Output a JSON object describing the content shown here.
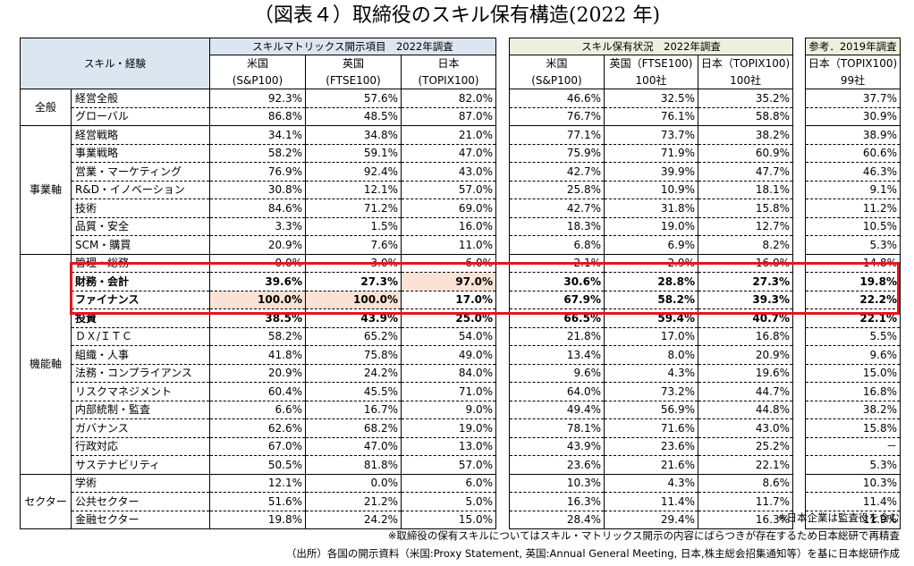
{
  "title": "（図表４）取締役のスキル保有構造(2022 年)",
  "header": {
    "skill_label": "スキル・経験",
    "group1": "スキルマトリックス開示項目　2022年調査",
    "group2": "スキル保有状況　2022年調査",
    "group3": "参考．2019年調査",
    "g1_cols": [
      {
        "top": "米国",
        "bottom": "(S&P100)"
      },
      {
        "top": "英国",
        "bottom": "(FTSE100)"
      },
      {
        "top": "日本",
        "bottom": "(TOPIX100)"
      }
    ],
    "g2_cols": [
      {
        "top": "米国",
        "bottom": "(S&P100)"
      },
      {
        "top": "英国（FTSE100)",
        "bottom": "100社"
      },
      {
        "top": "日本（TOPIX100)",
        "bottom": "100社"
      }
    ],
    "g3_cols": [
      {
        "top": "日本（TOPIX100)",
        "bottom": "99社"
      }
    ]
  },
  "categories": {
    "general": "全般",
    "business": "事業軸",
    "function": "機能軸",
    "sector": "セクター"
  },
  "rows": [
    {
      "cat": "general",
      "item": "経営全般",
      "g1": [
        "92.3%",
        "57.6%",
        "82.0%"
      ],
      "g2": [
        "46.6%",
        "32.5%",
        "35.2%"
      ],
      "g3": "37.7%"
    },
    {
      "cat": "general",
      "item": "グローバル",
      "g1": [
        "86.8%",
        "48.5%",
        "87.0%"
      ],
      "g2": [
        "76.7%",
        "76.1%",
        "58.8%"
      ],
      "g3": "30.9%"
    },
    {
      "cat": "business",
      "item": "経営戦略",
      "g1": [
        "34.1%",
        "34.8%",
        "21.0%"
      ],
      "g2": [
        "77.1%",
        "73.7%",
        "38.2%"
      ],
      "g3": "38.9%"
    },
    {
      "cat": "business",
      "item": "事業戦略",
      "g1": [
        "58.2%",
        "59.1%",
        "47.0%"
      ],
      "g2": [
        "75.9%",
        "71.9%",
        "60.9%"
      ],
      "g3": "60.6%"
    },
    {
      "cat": "business",
      "item": "営業・マーケティング",
      "g1": [
        "76.9%",
        "92.4%",
        "43.0%"
      ],
      "g2": [
        "42.7%",
        "39.9%",
        "47.7%"
      ],
      "g3": "46.3%"
    },
    {
      "cat": "business",
      "item": "R&D・イノベーション",
      "g1": [
        "30.8%",
        "12.1%",
        "57.0%"
      ],
      "g2": [
        "25.8%",
        "10.9%",
        "18.1%"
      ],
      "g3": "9.1%"
    },
    {
      "cat": "business",
      "item": "技術",
      "g1": [
        "84.6%",
        "71.2%",
        "69.0%"
      ],
      "g2": [
        "42.7%",
        "31.8%",
        "15.8%"
      ],
      "g3": "11.2%"
    },
    {
      "cat": "business",
      "item": "品質・安全",
      "g1": [
        "3.3%",
        "1.5%",
        "16.0%"
      ],
      "g2": [
        "18.3%",
        "19.0%",
        "12.7%"
      ],
      "g3": "10.5%"
    },
    {
      "cat": "business",
      "item": "SCM・購買",
      "g1": [
        "20.9%",
        "7.6%",
        "11.0%"
      ],
      "g2": [
        "6.8%",
        "6.9%",
        "8.2%"
      ],
      "g3": "5.3%"
    },
    {
      "cat": "function",
      "item": "管理・総務",
      "g1": [
        "0.0%",
        "3.0%",
        "6.0%"
      ],
      "g2": [
        "2.1%",
        "2.9%",
        "16.0%"
      ],
      "g3": "14.8%"
    },
    {
      "cat": "function",
      "item": "財務・会計",
      "g1": [
        "39.6%",
        "27.3%",
        "97.0%"
      ],
      "g2": [
        "30.6%",
        "28.8%",
        "27.3%"
      ],
      "g3": "19.8%"
    },
    {
      "cat": "function",
      "item": "ファイナンス",
      "g1": [
        "100.0%",
        "100.0%",
        "17.0%"
      ],
      "g2": [
        "67.9%",
        "58.2%",
        "39.3%"
      ],
      "g3": "22.2%"
    },
    {
      "cat": "function",
      "item": "投資",
      "g1": [
        "38.5%",
        "43.9%",
        "25.0%"
      ],
      "g2": [
        "66.5%",
        "59.4%",
        "40.7%"
      ],
      "g3": "22.1%"
    },
    {
      "cat": "function",
      "item": "ＤＸ/ＩＴＣ",
      "g1": [
        "58.2%",
        "65.2%",
        "54.0%"
      ],
      "g2": [
        "21.8%",
        "17.0%",
        "16.8%"
      ],
      "g3": "5.5%"
    },
    {
      "cat": "function",
      "item": "組織・人事",
      "g1": [
        "41.8%",
        "75.8%",
        "49.0%"
      ],
      "g2": [
        "13.4%",
        "8.0%",
        "20.9%"
      ],
      "g3": "9.6%"
    },
    {
      "cat": "function",
      "item": "法務・コンプライアンス",
      "g1": [
        "20.9%",
        "24.2%",
        "84.0%"
      ],
      "g2": [
        "9.6%",
        "4.3%",
        "19.6%"
      ],
      "g3": "15.0%"
    },
    {
      "cat": "function",
      "item": "リスクマネジメント",
      "g1": [
        "60.4%",
        "45.5%",
        "71.0%"
      ],
      "g2": [
        "64.0%",
        "73.2%",
        "44.7%"
      ],
      "g3": "16.8%"
    },
    {
      "cat": "function",
      "item": "内部統制・監査",
      "g1": [
        "6.6%",
        "16.7%",
        "9.0%"
      ],
      "g2": [
        "49.4%",
        "56.9%",
        "44.8%"
      ],
      "g3": "38.2%"
    },
    {
      "cat": "function",
      "item": "ガバナンス",
      "g1": [
        "62.6%",
        "68.2%",
        "19.0%"
      ],
      "g2": [
        "78.1%",
        "71.6%",
        "43.0%"
      ],
      "g3": "15.8%"
    },
    {
      "cat": "function",
      "item": "行政対応",
      "g1": [
        "67.0%",
        "47.0%",
        "13.0%"
      ],
      "g2": [
        "43.9%",
        "23.6%",
        "25.2%"
      ],
      "g3": "－"
    },
    {
      "cat": "function",
      "item": "サステナビリティ",
      "g1": [
        "50.5%",
        "81.8%",
        "57.0%"
      ],
      "g2": [
        "23.6%",
        "21.6%",
        "22.1%"
      ],
      "g3": "5.3%"
    },
    {
      "cat": "sector",
      "item": "学術",
      "g1": [
        "12.1%",
        "0.0%",
        "6.0%"
      ],
      "g2": [
        "10.3%",
        "4.3%",
        "8.6%"
      ],
      "g3": "10.3%"
    },
    {
      "cat": "sector",
      "item": "公共セクター",
      "g1": [
        "51.6%",
        "21.2%",
        "5.0%"
      ],
      "g2": [
        "16.3%",
        "11.4%",
        "11.7%"
      ],
      "g3": "11.4%"
    },
    {
      "cat": "sector",
      "item": "金融セクター",
      "g1": [
        "19.8%",
        "24.2%",
        "15.0%"
      ],
      "g2": [
        "28.4%",
        "29.4%",
        "16.3%"
      ],
      "g3": "11.9%"
    }
  ],
  "highlight_colors": {
    "peach": "#fbe2d5",
    "box": "#e8141b",
    "blue_header": "#dce6f1",
    "green_header": "#ebf1de"
  },
  "notes": {
    "note1": "※日本企業は監査役を含む",
    "note2": "※取締役の保有スキルについてはスキル・マトリックス開示の内容にばらつきが存在するため日本総研で再精査",
    "source": "（出所）各国の開示資料（米国:Proxy Statement, 英国:Annual General Meeting, 日本,株主総会招集通知等）を基に日本総研作成"
  }
}
